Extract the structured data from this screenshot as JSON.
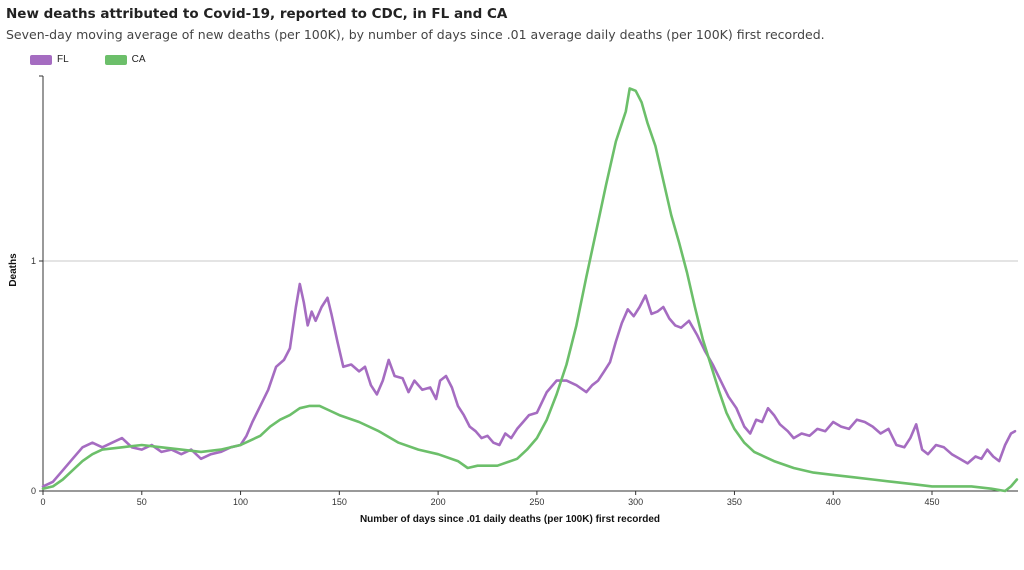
{
  "title": "New deaths attributed to Covid-19, reported to CDC, in FL and CA",
  "subtitle": "Seven-day moving average of new deaths (per 100K), by number of days since .01 average daily deaths (per 100K) first recorded.",
  "chart_data": {
    "type": "line",
    "xlabel": "Number of days since .01 daily deaths (per 100K) first recorded",
    "ylabel": "Deaths",
    "xlim": [
      0,
      493
    ],
    "ylim": [
      0,
      1.8
    ],
    "xticks": [
      0,
      50,
      100,
      150,
      200,
      250,
      300,
      350,
      400,
      450
    ],
    "yticks": [
      0,
      1
    ],
    "gridlines_y": [
      1
    ],
    "series": [
      {
        "name": "FL",
        "color": "#a56cc1",
        "points": [
          [
            0,
            0.02
          ],
          [
            5,
            0.04
          ],
          [
            10,
            0.09
          ],
          [
            15,
            0.14
          ],
          [
            20,
            0.19
          ],
          [
            25,
            0.21
          ],
          [
            30,
            0.19
          ],
          [
            35,
            0.21
          ],
          [
            40,
            0.23
          ],
          [
            45,
            0.19
          ],
          [
            50,
            0.18
          ],
          [
            55,
            0.2
          ],
          [
            60,
            0.17
          ],
          [
            65,
            0.18
          ],
          [
            70,
            0.16
          ],
          [
            75,
            0.18
          ],
          [
            80,
            0.14
          ],
          [
            85,
            0.16
          ],
          [
            90,
            0.17
          ],
          [
            95,
            0.19
          ],
          [
            100,
            0.2
          ],
          [
            103,
            0.24
          ],
          [
            106,
            0.3
          ],
          [
            110,
            0.37
          ],
          [
            114,
            0.44
          ],
          [
            118,
            0.54
          ],
          [
            122,
            0.57
          ],
          [
            125,
            0.62
          ],
          [
            128,
            0.8
          ],
          [
            130,
            0.9
          ],
          [
            132,
            0.82
          ],
          [
            134,
            0.72
          ],
          [
            136,
            0.78
          ],
          [
            138,
            0.74
          ],
          [
            141,
            0.8
          ],
          [
            144,
            0.84
          ],
          [
            146,
            0.77
          ],
          [
            149,
            0.65
          ],
          [
            152,
            0.54
          ],
          [
            156,
            0.55
          ],
          [
            160,
            0.52
          ],
          [
            163,
            0.54
          ],
          [
            166,
            0.46
          ],
          [
            169,
            0.42
          ],
          [
            172,
            0.48
          ],
          [
            175,
            0.57
          ],
          [
            178,
            0.5
          ],
          [
            182,
            0.49
          ],
          [
            185,
            0.43
          ],
          [
            188,
            0.48
          ],
          [
            192,
            0.44
          ],
          [
            196,
            0.45
          ],
          [
            199,
            0.4
          ],
          [
            201,
            0.48
          ],
          [
            204,
            0.5
          ],
          [
            207,
            0.45
          ],
          [
            210,
            0.37
          ],
          [
            213,
            0.33
          ],
          [
            216,
            0.28
          ],
          [
            219,
            0.26
          ],
          [
            222,
            0.23
          ],
          [
            225,
            0.24
          ],
          [
            228,
            0.21
          ],
          [
            231,
            0.2
          ],
          [
            234,
            0.25
          ],
          [
            237,
            0.23
          ],
          [
            240,
            0.27
          ],
          [
            243,
            0.3
          ],
          [
            246,
            0.33
          ],
          [
            250,
            0.34
          ],
          [
            255,
            0.43
          ],
          [
            260,
            0.48
          ],
          [
            265,
            0.48
          ],
          [
            270,
            0.46
          ],
          [
            275,
            0.43
          ],
          [
            278,
            0.46
          ],
          [
            281,
            0.48
          ],
          [
            284,
            0.52
          ],
          [
            287,
            0.56
          ],
          [
            290,
            0.65
          ],
          [
            293,
            0.73
          ],
          [
            296,
            0.79
          ],
          [
            299,
            0.76
          ],
          [
            302,
            0.8
          ],
          [
            305,
            0.85
          ],
          [
            308,
            0.77
          ],
          [
            311,
            0.78
          ],
          [
            314,
            0.8
          ],
          [
            317,
            0.75
          ],
          [
            320,
            0.72
          ],
          [
            323,
            0.71
          ],
          [
            327,
            0.74
          ],
          [
            331,
            0.68
          ],
          [
            335,
            0.61
          ],
          [
            339,
            0.55
          ],
          [
            343,
            0.48
          ],
          [
            347,
            0.41
          ],
          [
            351,
            0.36
          ],
          [
            355,
            0.28
          ],
          [
            358,
            0.25
          ],
          [
            361,
            0.31
          ],
          [
            364,
            0.3
          ],
          [
            367,
            0.36
          ],
          [
            370,
            0.33
          ],
          [
            373,
            0.29
          ],
          [
            377,
            0.26
          ],
          [
            380,
            0.23
          ],
          [
            384,
            0.25
          ],
          [
            388,
            0.24
          ],
          [
            392,
            0.27
          ],
          [
            396,
            0.26
          ],
          [
            400,
            0.3
          ],
          [
            404,
            0.28
          ],
          [
            408,
            0.27
          ],
          [
            412,
            0.31
          ],
          [
            416,
            0.3
          ],
          [
            420,
            0.28
          ],
          [
            424,
            0.25
          ],
          [
            428,
            0.27
          ],
          [
            432,
            0.2
          ],
          [
            436,
            0.19
          ],
          [
            439,
            0.23
          ],
          [
            442,
            0.29
          ],
          [
            445,
            0.18
          ],
          [
            448,
            0.16
          ],
          [
            452,
            0.2
          ],
          [
            456,
            0.19
          ],
          [
            460,
            0.16
          ],
          [
            464,
            0.14
          ],
          [
            468,
            0.12
          ],
          [
            472,
            0.15
          ],
          [
            475,
            0.14
          ],
          [
            478,
            0.18
          ],
          [
            481,
            0.15
          ],
          [
            484,
            0.13
          ],
          [
            487,
            0.2
          ],
          [
            490,
            0.25
          ],
          [
            492,
            0.26
          ]
        ]
      },
      {
        "name": "CA",
        "color": "#6cbf6a",
        "points": [
          [
            0,
            0.01
          ],
          [
            5,
            0.02
          ],
          [
            10,
            0.05
          ],
          [
            15,
            0.09
          ],
          [
            20,
            0.13
          ],
          [
            25,
            0.16
          ],
          [
            30,
            0.18
          ],
          [
            40,
            0.19
          ],
          [
            50,
            0.2
          ],
          [
            60,
            0.19
          ],
          [
            70,
            0.18
          ],
          [
            80,
            0.17
          ],
          [
            90,
            0.18
          ],
          [
            100,
            0.2
          ],
          [
            105,
            0.22
          ],
          [
            110,
            0.24
          ],
          [
            115,
            0.28
          ],
          [
            120,
            0.31
          ],
          [
            125,
            0.33
          ],
          [
            130,
            0.36
          ],
          [
            135,
            0.37
          ],
          [
            140,
            0.37
          ],
          [
            145,
            0.35
          ],
          [
            150,
            0.33
          ],
          [
            160,
            0.3
          ],
          [
            170,
            0.26
          ],
          [
            180,
            0.21
          ],
          [
            190,
            0.18
          ],
          [
            200,
            0.16
          ],
          [
            210,
            0.13
          ],
          [
            215,
            0.1
          ],
          [
            220,
            0.11
          ],
          [
            230,
            0.11
          ],
          [
            240,
            0.14
          ],
          [
            245,
            0.18
          ],
          [
            250,
            0.23
          ],
          [
            255,
            0.31
          ],
          [
            260,
            0.42
          ],
          [
            265,
            0.55
          ],
          [
            270,
            0.72
          ],
          [
            275,
            0.93
          ],
          [
            280,
            1.13
          ],
          [
            285,
            1.33
          ],
          [
            290,
            1.52
          ],
          [
            295,
            1.65
          ],
          [
            297,
            1.75
          ],
          [
            300,
            1.74
          ],
          [
            303,
            1.69
          ],
          [
            306,
            1.6
          ],
          [
            310,
            1.5
          ],
          [
            314,
            1.35
          ],
          [
            318,
            1.2
          ],
          [
            322,
            1.08
          ],
          [
            326,
            0.95
          ],
          [
            330,
            0.8
          ],
          [
            334,
            0.66
          ],
          [
            338,
            0.55
          ],
          [
            342,
            0.44
          ],
          [
            346,
            0.34
          ],
          [
            350,
            0.27
          ],
          [
            355,
            0.21
          ],
          [
            360,
            0.17
          ],
          [
            370,
            0.13
          ],
          [
            380,
            0.1
          ],
          [
            390,
            0.08
          ],
          [
            400,
            0.07
          ],
          [
            410,
            0.06
          ],
          [
            420,
            0.05
          ],
          [
            430,
            0.04
          ],
          [
            440,
            0.03
          ],
          [
            450,
            0.02
          ],
          [
            460,
            0.02
          ],
          [
            470,
            0.02
          ],
          [
            480,
            0.01
          ],
          [
            487,
            0.0
          ],
          [
            490,
            0.02
          ],
          [
            493,
            0.05
          ]
        ]
      }
    ]
  }
}
